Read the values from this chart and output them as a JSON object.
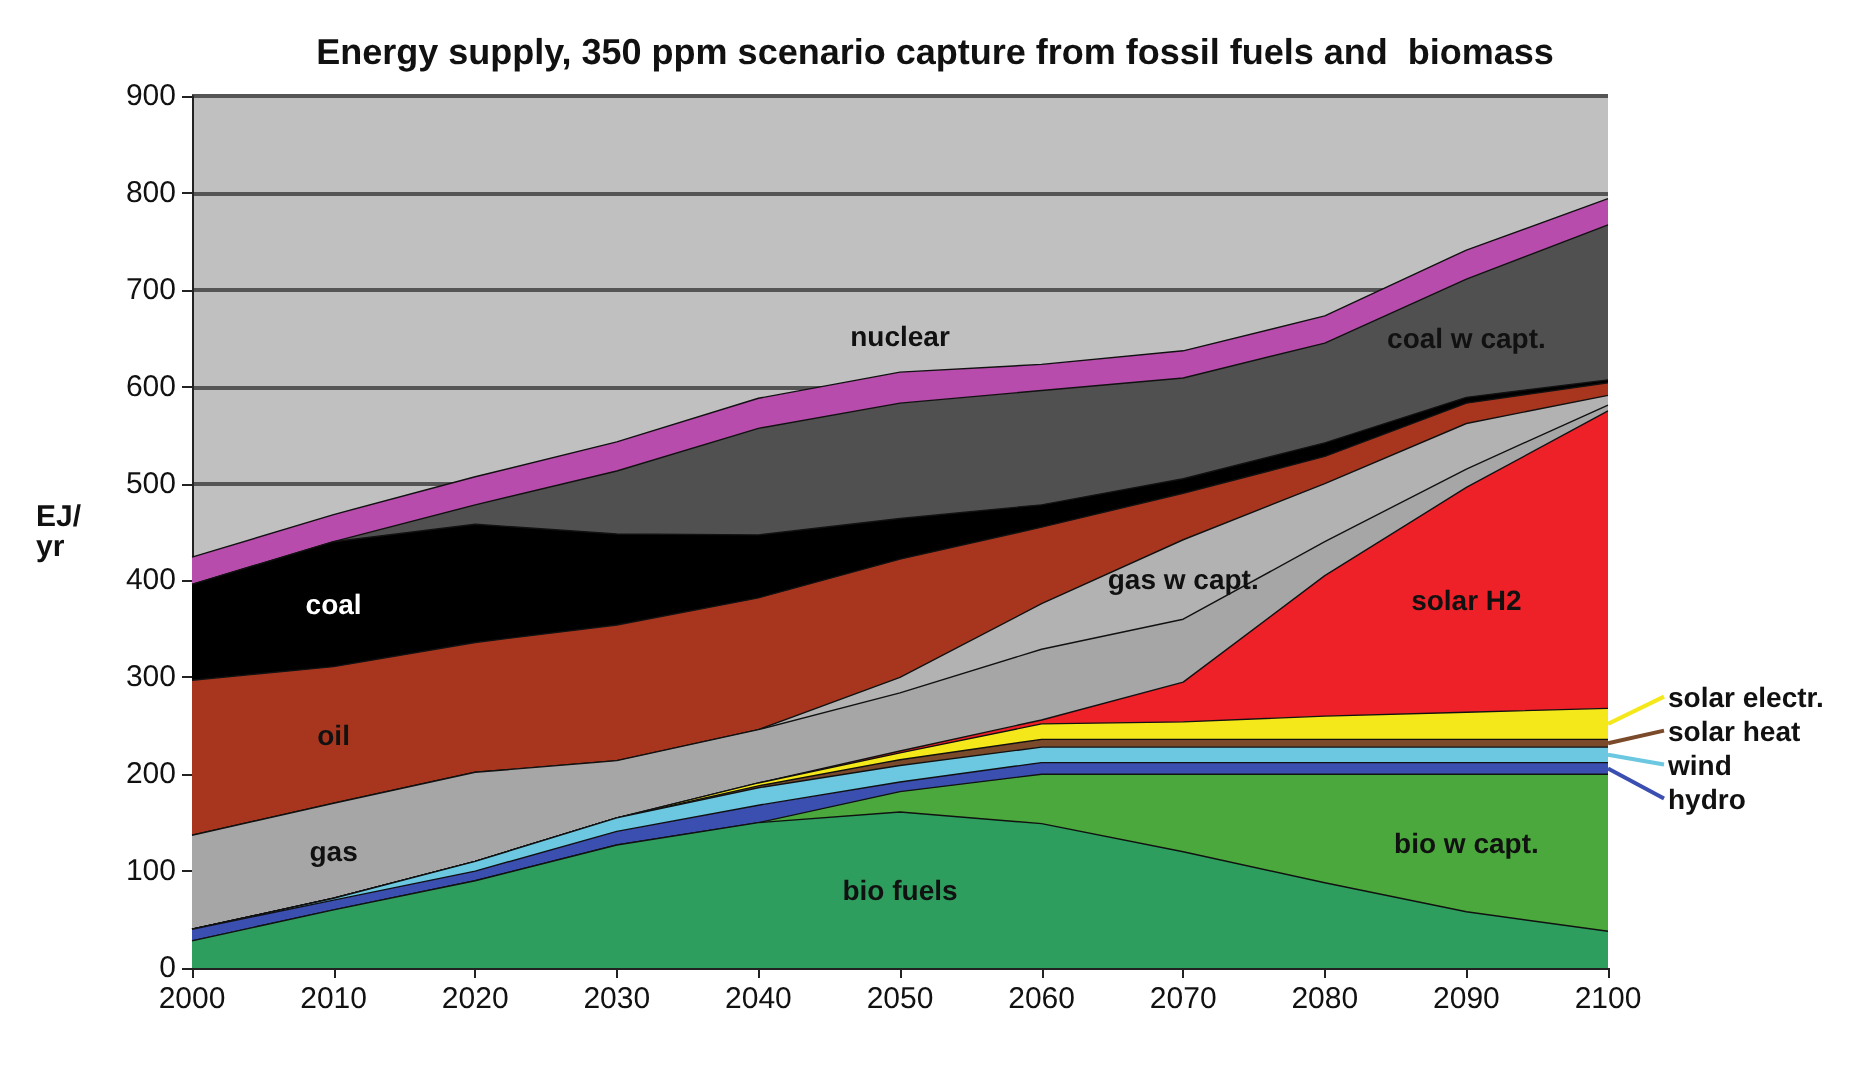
{
  "chart_data": {
    "type": "area",
    "title": "Energy supply, 350 ppm scenario capture from fossil fuels and  biomass",
    "ylabel": "EJ/ yr",
    "stacked": true,
    "grid": "y",
    "legend": "right",
    "x": [
      2000,
      2010,
      2020,
      2030,
      2040,
      2050,
      2060,
      2070,
      2080,
      2090,
      2100
    ],
    "xlim": [
      2000,
      2100
    ],
    "xticks": [
      2000,
      2010,
      2020,
      2030,
      2040,
      2050,
      2060,
      2070,
      2080,
      2090,
      2100
    ],
    "ylim": [
      0,
      900
    ],
    "yticks": [
      0,
      100,
      200,
      300,
      400,
      500,
      600,
      700,
      800,
      900
    ],
    "series": [
      {
        "name": "bio fuels",
        "color": "#2e9e5e",
        "values": [
          28,
          60,
          90,
          127,
          150,
          161,
          149,
          120,
          88,
          58,
          38
        ]
      },
      {
        "name": "bio w capt.",
        "color": "#4aa83c",
        "values": [
          0,
          0,
          0,
          0,
          0,
          21,
          51,
          80,
          112,
          142,
          162
        ]
      },
      {
        "name": "hydro",
        "color": "#3a4fb0",
        "values": [
          12,
          10,
          10,
          14,
          18,
          10,
          12,
          12,
          12,
          12,
          12
        ]
      },
      {
        "name": "wind",
        "color": "#6cc8e0",
        "values": [
          0,
          2,
          10,
          14,
          18,
          17,
          16,
          16,
          16,
          16,
          16
        ]
      },
      {
        "name": "solar heat",
        "color": "#7a4a2a",
        "values": [
          0,
          0,
          0,
          0,
          2,
          6,
          8,
          8,
          8,
          8,
          8
        ]
      },
      {
        "name": "solar electr.",
        "color": "#f5e81a",
        "values": [
          0,
          0,
          0,
          0,
          3,
          7,
          16,
          18,
          24,
          28,
          32
        ]
      },
      {
        "name": "solar H2",
        "color": "#ee2028",
        "values": [
          0,
          0,
          0,
          0,
          0,
          2,
          4,
          41,
          145,
          232,
          307
        ]
      },
      {
        "name": "gas",
        "color": "#a6a6a6",
        "values": [
          97,
          98,
          92,
          59,
          55,
          60,
          73,
          65,
          35,
          19,
          6
        ]
      },
      {
        "name": "gas w capt.",
        "color": "#b2b2b2",
        "values": [
          0,
          0,
          0,
          0,
          0,
          16,
          47,
          82,
          60,
          47,
          10
        ]
      },
      {
        "name": "oil",
        "color": "#a8361e",
        "values": [
          160,
          141,
          134,
          140,
          136,
          122,
          79,
          48,
          28,
          21,
          13
        ]
      },
      {
        "name": "coal",
        "color": "#000000",
        "values": [
          99,
          129,
          122,
          94,
          65,
          42,
          23,
          15,
          14,
          6,
          3
        ]
      },
      {
        "name": "coal w capt.",
        "color": "#505050",
        "values": [
          0,
          0,
          20,
          65,
          110,
          119,
          118,
          104,
          103,
          122,
          160
        ]
      },
      {
        "name": "nuclear",
        "color": "#b84cac",
        "values": [
          28,
          28,
          29,
          30,
          31,
          32,
          27,
          28,
          28,
          30,
          27
        ]
      }
    ]
  }
}
